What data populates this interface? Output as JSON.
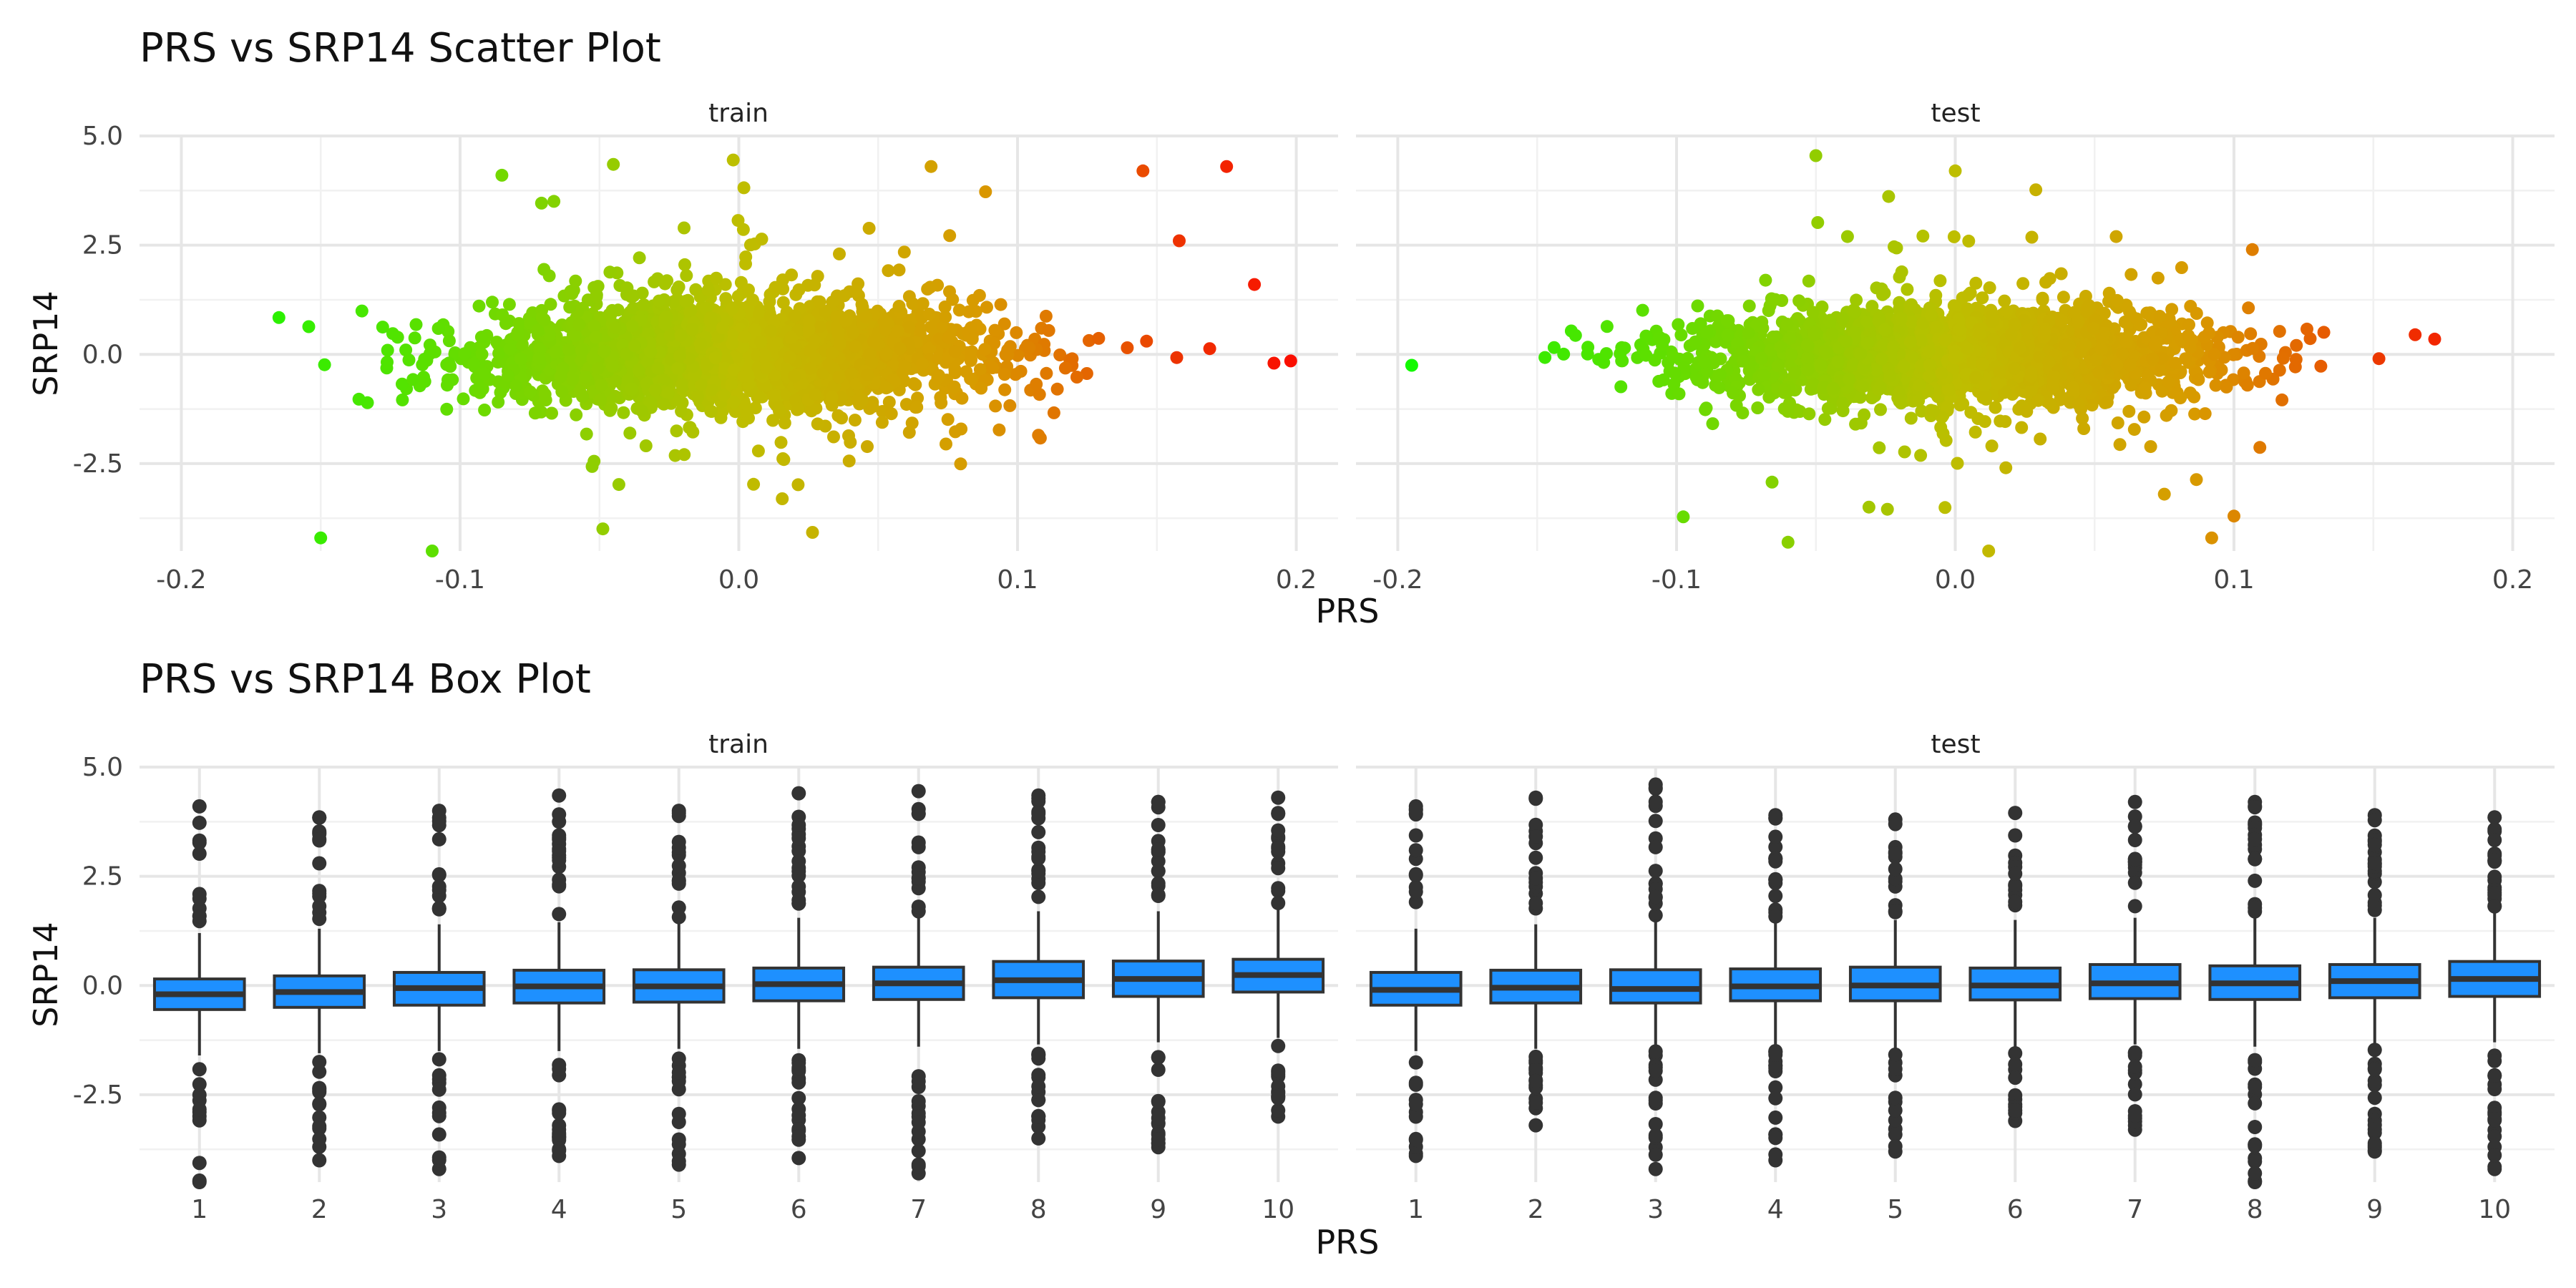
{
  "chart_data": [
    {
      "type": "scatter",
      "title": "PRS vs SRP14 Scatter Plot",
      "xlabel": "PRS",
      "ylabel": "SRP14",
      "facets": [
        "train",
        "test"
      ],
      "xlim": [
        -0.215,
        0.215
      ],
      "ylim": [
        -4.5,
        5.0
      ],
      "x_ticks": [
        "-0.2",
        "-0.1",
        "0.0",
        "0.1",
        "0.2"
      ],
      "y_ticks": [
        "-2.5",
        "0.0",
        "2.5",
        "5.0"
      ],
      "grid": true,
      "color_scale": {
        "low": "#00ff00",
        "high": "#ff0000",
        "mapped_to": "PRS"
      },
      "distribution": {
        "train": {
          "x_mean": 0.0,
          "x_sd": 0.045,
          "y_mean": 0.0,
          "y_sd": 0.6,
          "x_range": [
            -0.175,
            0.2
          ]
        },
        "test": {
          "x_mean": 0.0,
          "x_sd": 0.045,
          "y_mean": 0.0,
          "y_sd": 0.5,
          "x_range": [
            -0.195,
            0.172
          ]
        }
      },
      "notable_points": {
        "train": [
          [
            0.175,
            4.3
          ],
          [
            0.145,
            4.2
          ],
          [
            0.158,
            2.6
          ],
          [
            0.185,
            1.6
          ],
          [
            0.192,
            -0.2
          ],
          [
            0.198,
            -0.15
          ],
          [
            -0.15,
            -4.2
          ],
          [
            -0.11,
            -4.5
          ],
          [
            -0.002,
            4.45
          ],
          [
            -0.045,
            4.35
          ],
          [
            -0.085,
            4.1
          ]
        ],
        "test": [
          [
            -0.195,
            -0.25
          ],
          [
            0.172,
            0.35
          ],
          [
            0.165,
            0.45
          ],
          [
            -0.05,
            4.55
          ],
          [
            0.0,
            4.2
          ],
          [
            0.1,
            -3.7
          ],
          [
            0.092,
            -4.2
          ],
          [
            0.012,
            -4.5
          ],
          [
            0.075,
            -3.2
          ],
          [
            -0.06,
            -4.3
          ]
        ]
      }
    },
    {
      "type": "box",
      "title": "PRS vs SRP14 Box Plot",
      "xlabel": "PRS",
      "ylabel": "SRP14",
      "facets": [
        "train",
        "test"
      ],
      "categories": [
        "1",
        "2",
        "3",
        "4",
        "5",
        "6",
        "7",
        "8",
        "9",
        "10"
      ],
      "ylim": [
        -4.5,
        5.0
      ],
      "y_ticks": [
        "-2.5",
        "0.0",
        "2.5",
        "5.0"
      ],
      "grid": true,
      "fill": "#1e90ff",
      "boxes": {
        "train": [
          {
            "q1": -0.55,
            "median": -0.2,
            "q3": 0.15,
            "lo": -1.6,
            "hi": 1.2,
            "min": -4.5,
            "max": 4.1
          },
          {
            "q1": -0.5,
            "median": -0.15,
            "q3": 0.22,
            "lo": -1.55,
            "hi": 1.3,
            "min": -4.0,
            "max": 3.85
          },
          {
            "q1": -0.45,
            "median": -0.06,
            "q3": 0.3,
            "lo": -1.5,
            "hi": 1.4,
            "min": -4.2,
            "max": 4.0
          },
          {
            "q1": -0.4,
            "median": -0.02,
            "q3": 0.35,
            "lo": -1.5,
            "hi": 1.45,
            "min": -3.9,
            "max": 4.35
          },
          {
            "q1": -0.38,
            "median": -0.02,
            "q3": 0.36,
            "lo": -1.45,
            "hi": 1.45,
            "min": -4.1,
            "max": 4.0
          },
          {
            "q1": -0.35,
            "median": 0.03,
            "q3": 0.4,
            "lo": -1.45,
            "hi": 1.55,
            "min": -3.95,
            "max": 4.4
          },
          {
            "q1": -0.32,
            "median": 0.05,
            "q3": 0.42,
            "lo": -1.4,
            "hi": 1.55,
            "min": -4.3,
            "max": 4.45
          },
          {
            "q1": -0.28,
            "median": 0.12,
            "q3": 0.55,
            "lo": -1.35,
            "hi": 1.7,
            "min": -3.5,
            "max": 4.35
          },
          {
            "q1": -0.25,
            "median": 0.15,
            "q3": 0.56,
            "lo": -1.3,
            "hi": 1.7,
            "min": -3.7,
            "max": 4.2
          },
          {
            "q1": -0.15,
            "median": 0.24,
            "q3": 0.6,
            "lo": -1.2,
            "hi": 1.75,
            "min": -3.0,
            "max": 4.3
          }
        ],
        "test": [
          {
            "q1": -0.45,
            "median": -0.1,
            "q3": 0.3,
            "lo": -1.5,
            "hi": 1.3,
            "min": -3.9,
            "max": 4.1
          },
          {
            "q1": -0.4,
            "median": -0.05,
            "q3": 0.35,
            "lo": -1.45,
            "hi": 1.4,
            "min": -3.2,
            "max": 4.3
          },
          {
            "q1": -0.4,
            "median": -0.08,
            "q3": 0.36,
            "lo": -1.4,
            "hi": 1.5,
            "min": -4.2,
            "max": 4.6
          },
          {
            "q1": -0.35,
            "median": -0.02,
            "q3": 0.38,
            "lo": -1.4,
            "hi": 1.45,
            "min": -4.0,
            "max": 3.9
          },
          {
            "q1": -0.35,
            "median": 0.0,
            "q3": 0.42,
            "lo": -1.45,
            "hi": 1.5,
            "min": -3.8,
            "max": 3.8
          },
          {
            "q1": -0.33,
            "median": 0.0,
            "q3": 0.4,
            "lo": -1.4,
            "hi": 1.5,
            "min": -3.1,
            "max": 3.95
          },
          {
            "q1": -0.3,
            "median": 0.05,
            "q3": 0.48,
            "lo": -1.35,
            "hi": 1.55,
            "min": -3.3,
            "max": 4.2
          },
          {
            "q1": -0.32,
            "median": 0.05,
            "q3": 0.45,
            "lo": -1.4,
            "hi": 1.55,
            "min": -4.5,
            "max": 4.2
          },
          {
            "q1": -0.28,
            "median": 0.1,
            "q3": 0.48,
            "lo": -1.35,
            "hi": 1.55,
            "min": -3.8,
            "max": 3.9
          },
          {
            "q1": -0.25,
            "median": 0.15,
            "q3": 0.55,
            "lo": -1.3,
            "hi": 1.65,
            "min": -4.2,
            "max": 3.85
          }
        ]
      }
    }
  ]
}
